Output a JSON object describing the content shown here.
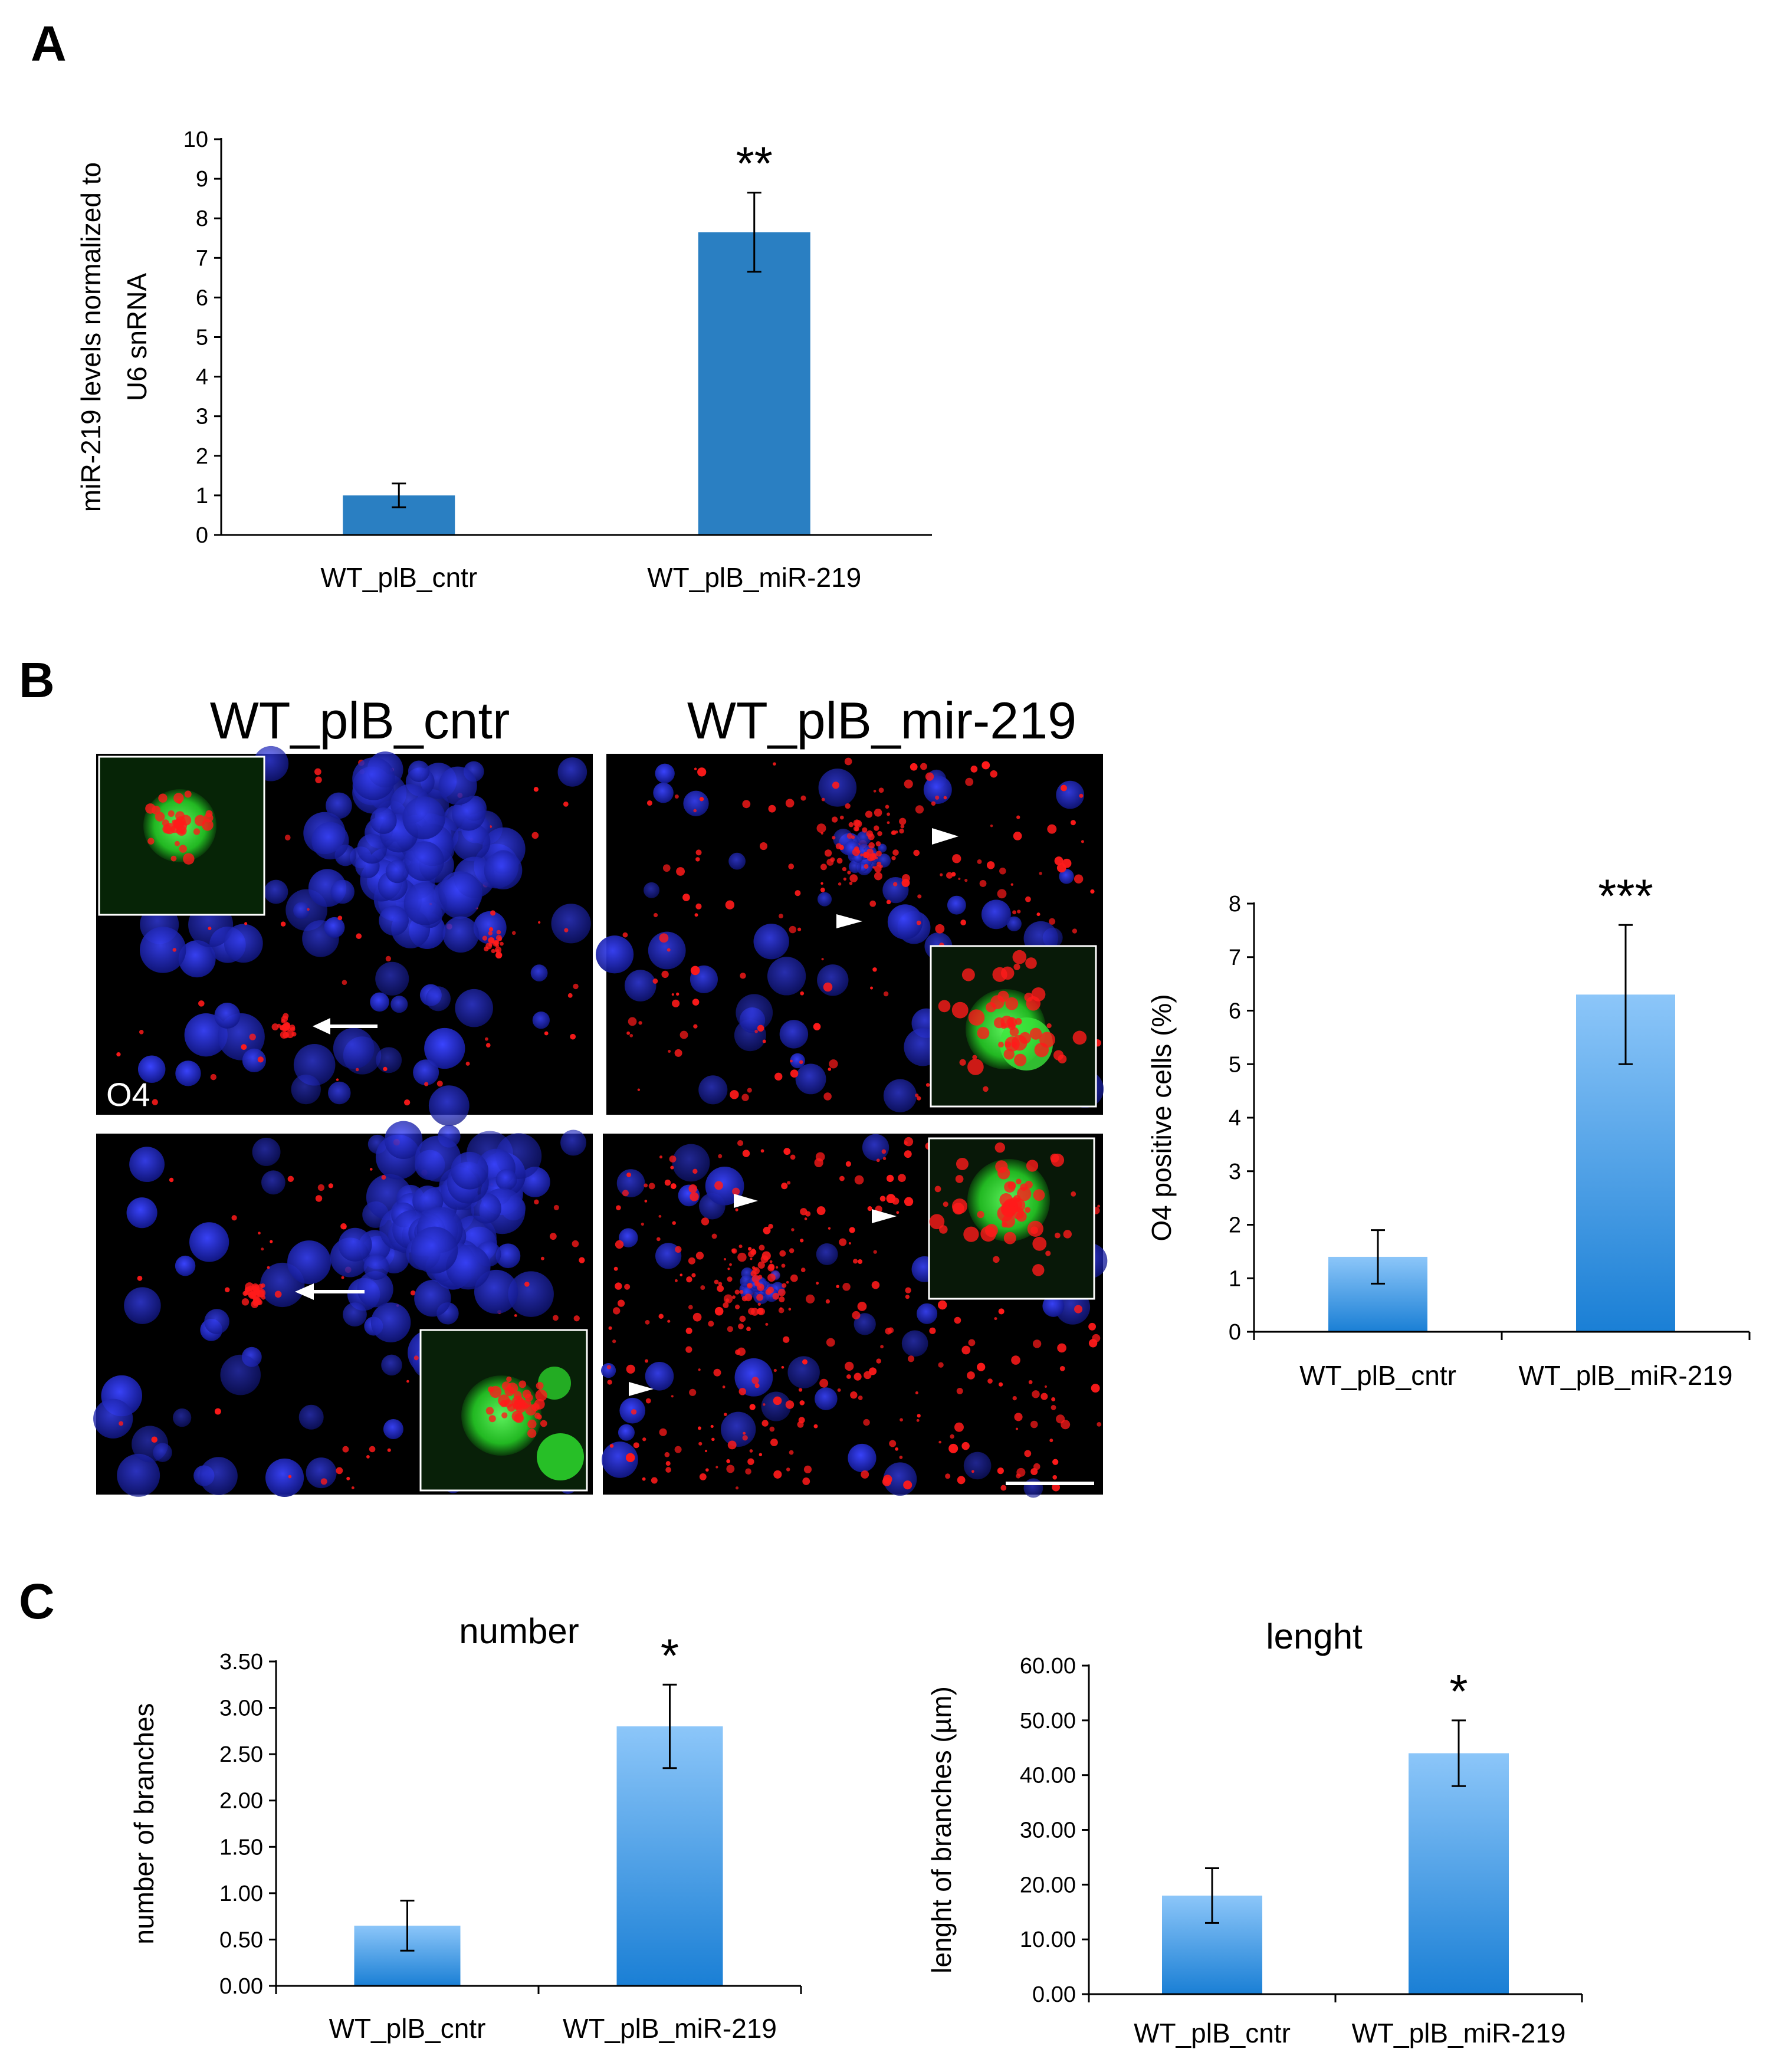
{
  "panels": {
    "A": "A",
    "B": "B",
    "C": "C"
  },
  "micrograph": {
    "titles": [
      "WT_plB_cntr",
      "WT_plB_mir-219"
    ],
    "stain_label": "O4"
  },
  "colors": {
    "panel_a_bar": "#2a7fc2",
    "gradient_top": "#8cc6f9",
    "gradient_bottom": "#1a7fd5",
    "nuclei": "#1c23c9",
    "o4_stain": "#ff1a1a",
    "inset_green": "#2fd12f"
  },
  "chart_data": [
    {
      "id": "chartA",
      "type": "bar",
      "title": "",
      "categories": [
        "WT_plB_cntr",
        "WT_plB_miR-219"
      ],
      "values": [
        1.0,
        7.65
      ],
      "errors": [
        0.3,
        1.0
      ],
      "significance": [
        "",
        "**"
      ],
      "ylabel_lines": [
        "miR-219 levels normalized to",
        "U6 snRNA"
      ],
      "ylim": [
        0,
        10
      ],
      "ticks": [
        0,
        1,
        2,
        3,
        4,
        5,
        6,
        7,
        8,
        9,
        10
      ],
      "tick_labels": [
        "0",
        "1",
        "2",
        "3",
        "4",
        "5",
        "6",
        "7",
        "8",
        "9",
        "10"
      ],
      "fill": "solid",
      "grid": false
    },
    {
      "id": "chartB",
      "type": "bar",
      "title": "",
      "categories": [
        "WT_plB_cntr",
        "WT_plB_miR-219"
      ],
      "values": [
        1.4,
        6.3
      ],
      "errors": [
        0.5,
        1.3
      ],
      "significance": [
        "",
        "***"
      ],
      "ylabel_lines": [
        "O4 positive  cells (%)"
      ],
      "ylim": [
        0,
        8
      ],
      "ticks": [
        0,
        1,
        2,
        3,
        4,
        5,
        6,
        7,
        8
      ],
      "tick_labels": [
        "0",
        "1",
        "2",
        "3",
        "4",
        "5",
        "6",
        "7",
        "8"
      ],
      "fill": "gradient",
      "grid": false
    },
    {
      "id": "chartC1",
      "type": "bar",
      "title": "number",
      "categories": [
        "WT_plB_cntr",
        "WT_plB_miR-219"
      ],
      "values": [
        0.65,
        2.8
      ],
      "errors": [
        0.27,
        0.45
      ],
      "significance": [
        "",
        "*"
      ],
      "ylabel_lines": [
        "number of branches"
      ],
      "ylim": [
        0,
        3.5
      ],
      "ticks": [
        0,
        0.5,
        1,
        1.5,
        2,
        2.5,
        3,
        3.5
      ],
      "tick_labels": [
        "0.00",
        "0.50",
        "1.00",
        "1.50",
        "2.00",
        "2.50",
        "3.00",
        "3.50"
      ],
      "fill": "gradient",
      "grid": false
    },
    {
      "id": "chartC2",
      "type": "bar",
      "title": "lenght",
      "categories": [
        "WT_plB_cntr",
        "WT_plB_miR-219"
      ],
      "values": [
        18,
        44
      ],
      "errors": [
        5,
        6
      ],
      "significance": [
        "",
        "*"
      ],
      "ylabel_lines": [
        "lenght of branches (µm)"
      ],
      "ylim": [
        0,
        60
      ],
      "ticks": [
        0,
        10,
        20,
        30,
        40,
        50,
        60
      ],
      "tick_labels": [
        "0.00",
        "10.00",
        "20.00",
        "30.00",
        "40.00",
        "50.00",
        "60.00"
      ],
      "fill": "gradient",
      "grid": false
    }
  ]
}
